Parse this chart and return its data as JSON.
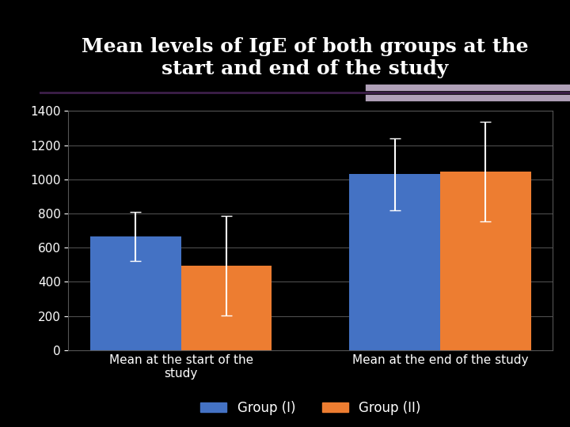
{
  "title_line1": "Mean levels of IgE of both groups at the",
  "title_line2": "start and end of the study",
  "categories": [
    "Mean at the start of the\nstudy",
    "Mean at the end of the study"
  ],
  "group1_values": [
    665,
    1030
  ],
  "group2_values": [
    495,
    1045
  ],
  "group1_errors": [
    145,
    210
  ],
  "group2_errors": [
    290,
    290
  ],
  "group1_color": "#4472C4",
  "group2_color": "#ED7D31",
  "group1_label": "Group (I)",
  "group2_label": "Group (II)",
  "ylim": [
    0,
    1400
  ],
  "yticks": [
    0,
    200,
    400,
    600,
    800,
    1000,
    1200,
    1400
  ],
  "background_color": "#000000",
  "title_color": "#ffffff",
  "chart_bg_color": "#000000",
  "left_panel_color": "#b5b46a",
  "bar_width": 0.35
}
